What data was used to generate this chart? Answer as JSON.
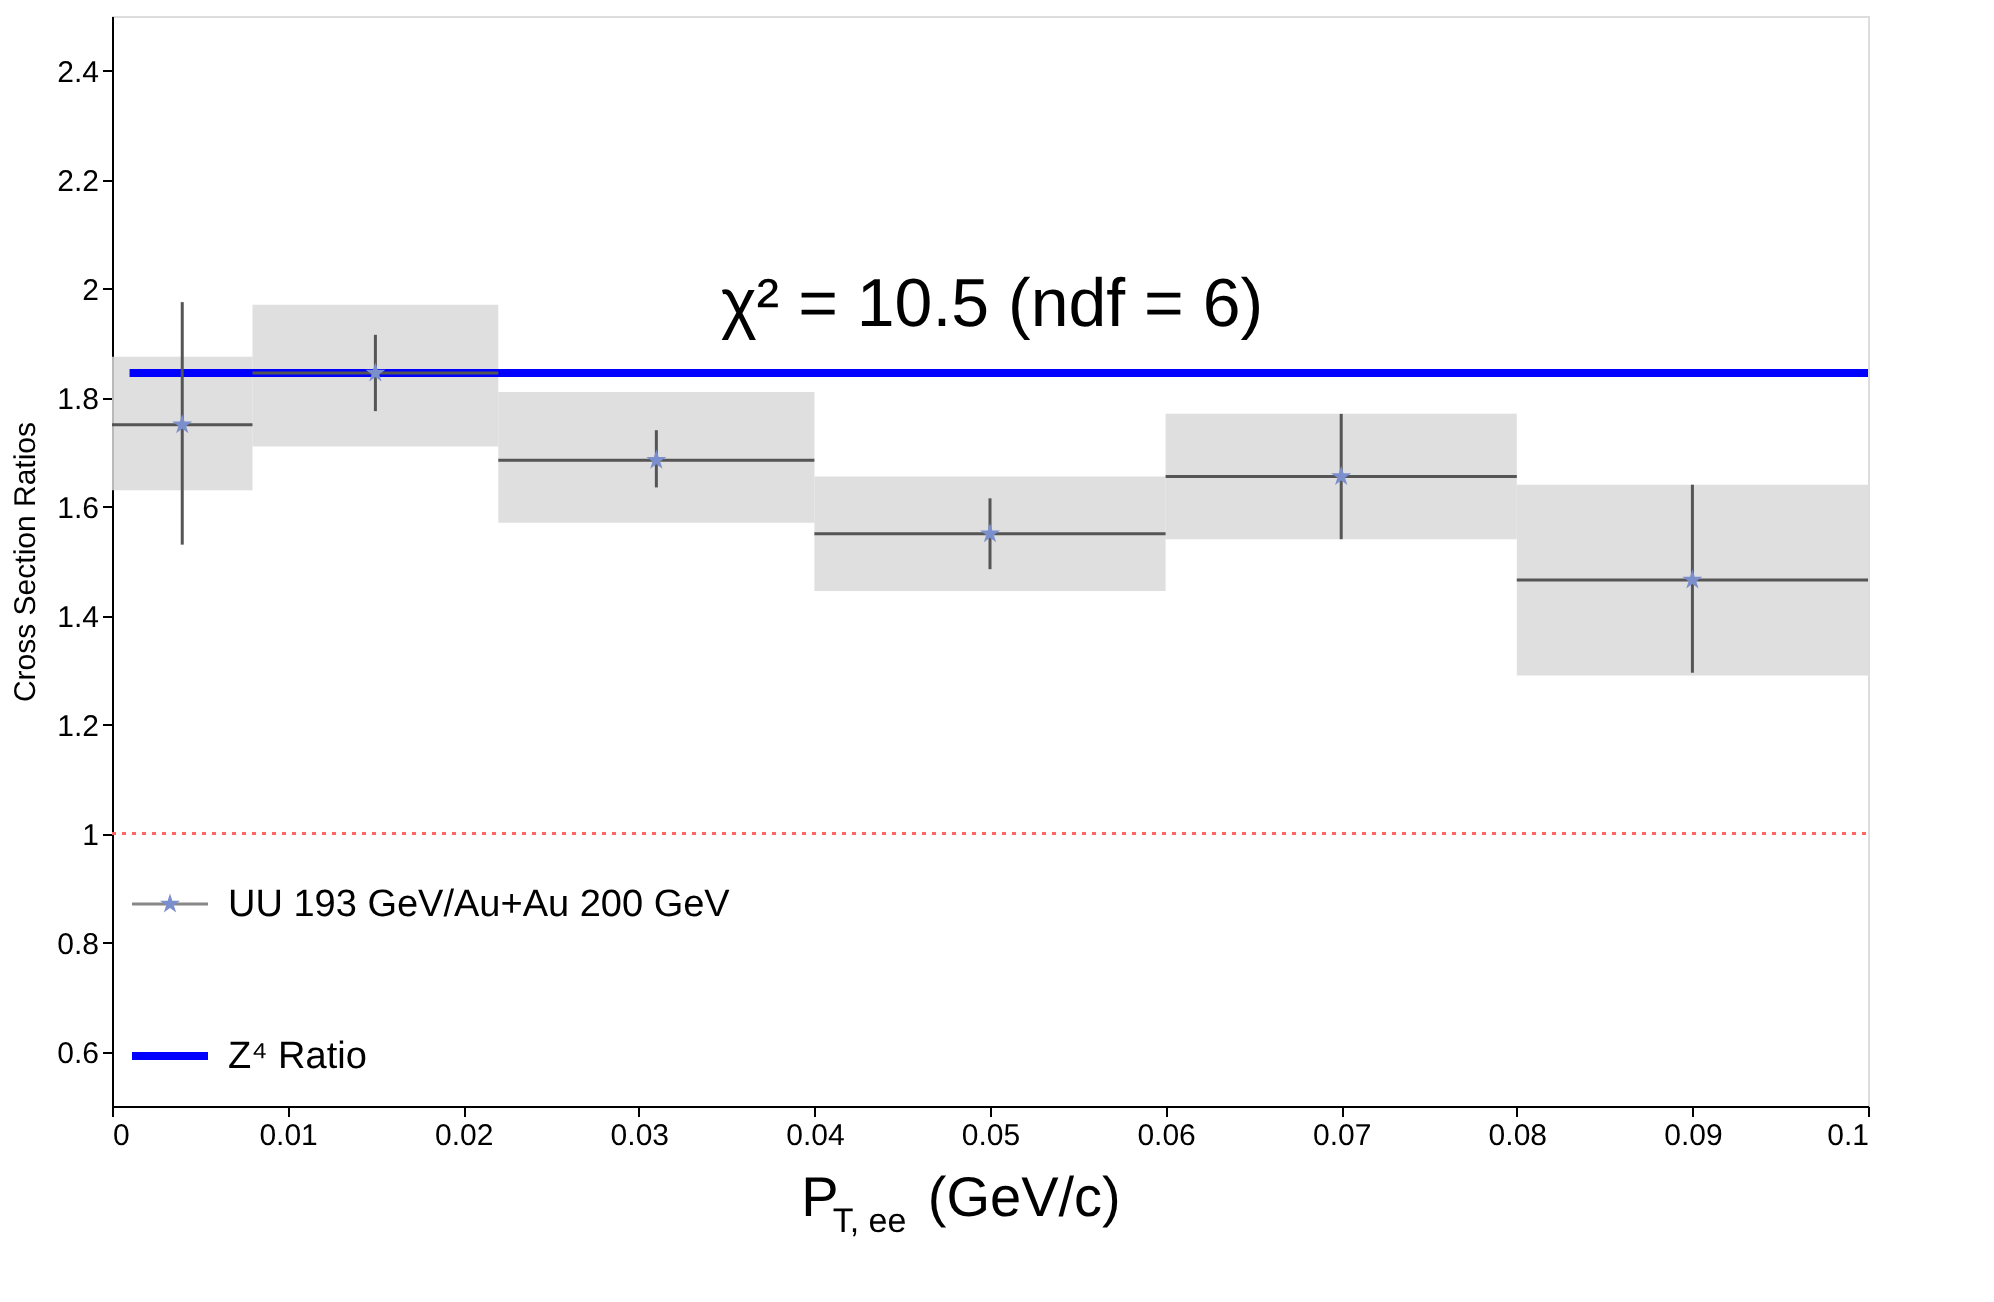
{
  "chart_data": {
    "type": "scatter",
    "xlabel": "P$_{T, ee}$ (GeV/c)",
    "ylabel": "Cross Section Ratios",
    "annotations": [
      "χ² = 10.5 (ndf = 6)"
    ],
    "xlim": [
      0,
      0.1
    ],
    "xticks": [
      0,
      0.01,
      0.02,
      0.03,
      0.04,
      0.05,
      0.06,
      0.07,
      0.08,
      0.09,
      0.1
    ],
    "ylim": [
      0.5,
      2.5
    ],
    "yticks": [
      0.6,
      0.8,
      1,
      1.2,
      1.4,
      1.6,
      1.8,
      2,
      2.2,
      2.4
    ],
    "grid": false,
    "legend": "bottom left",
    "series": [
      {
        "type": "bar",
        "color": "#d9d9d9",
        "x": [
          0.004,
          0.015,
          0.031,
          0.05,
          0.07,
          0.09
        ],
        "base": [
          1.63,
          1.71,
          1.57,
          1.445,
          1.54,
          1.29
        ],
        "values": [
          0.245,
          0.26,
          0.24,
          0.21,
          0.23,
          0.35
        ]
      },
      {
        "name": "UU 193 GeV/Au+Au 200 GeV",
        "color": "#7b8fcc",
        "marker": "star",
        "x": [
          0.004,
          0.015,
          0.031,
          0.05,
          0.07,
          0.09
        ],
        "values": [
          1.75,
          1.845,
          1.685,
          1.55,
          1.655,
          1.465
        ],
        "errors": [
          [
            1.53,
            1.975
          ],
          [
            1.775,
            1.915
          ],
          [
            1.635,
            1.74
          ],
          [
            1.485,
            1.615
          ],
          [
            1.54,
            1.77
          ],
          [
            1.295,
            1.64
          ]
        ],
        "xerrors": [
          0.004,
          0.007,
          0.009,
          0.01,
          0.01,
          0.01
        ]
      },
      {
        "type": "line",
        "name": "Z⁴ Ratio",
        "color": "#0000ff",
        "line_style": "solid",
        "x": [
          0.001,
          0.1
        ],
        "values": [
          1.845,
          1.845
        ]
      }
    ],
    "ref_lines": [
      {
        "axis": "y",
        "value": 1,
        "label": null,
        "color": "#ff6666",
        "line_style": "dotted"
      }
    ]
  }
}
